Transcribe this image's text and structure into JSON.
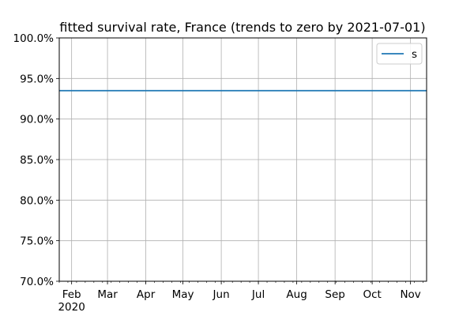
{
  "chart_data": {
    "type": "line",
    "title": "fitted survival rate, France (trends to zero by 2021-07-01)",
    "xlabel": "",
    "ylabel": "",
    "x_axis": {
      "type": "date",
      "range": [
        "2020-01-22",
        "2020-11-14"
      ],
      "major_ticks": [
        {
          "date": "2020-02-01",
          "label": "Feb"
        },
        {
          "date": "2020-03-01",
          "label": "Mar"
        },
        {
          "date": "2020-04-01",
          "label": "Apr"
        },
        {
          "date": "2020-05-01",
          "label": "May"
        },
        {
          "date": "2020-06-01",
          "label": "Jun"
        },
        {
          "date": "2020-07-01",
          "label": "Jul"
        },
        {
          "date": "2020-08-01",
          "label": "Aug"
        },
        {
          "date": "2020-09-01",
          "label": "Sep"
        },
        {
          "date": "2020-10-01",
          "label": "Oct"
        },
        {
          "date": "2020-11-01",
          "label": "Nov"
        }
      ],
      "year_label": "2020",
      "minor_ticks": "weekly"
    },
    "y_axis": {
      "ylim": [
        0.7,
        1.0
      ],
      "ticks": [
        {
          "value": 0.7,
          "label": "70.0%"
        },
        {
          "value": 0.75,
          "label": "75.0%"
        },
        {
          "value": 0.8,
          "label": "80.0%"
        },
        {
          "value": 0.85,
          "label": "85.0%"
        },
        {
          "value": 0.9,
          "label": "90.0%"
        },
        {
          "value": 0.95,
          "label": "95.0%"
        },
        {
          "value": 1.0,
          "label": "100.0%"
        }
      ]
    },
    "grid": true,
    "legend": {
      "placement": "top-right"
    },
    "series": [
      {
        "name": "s",
        "color": "#1f77b4",
        "points": [
          {
            "x": "2020-01-22",
            "y": 0.935
          },
          {
            "x": "2020-11-14",
            "y": 0.935
          }
        ]
      }
    ]
  }
}
